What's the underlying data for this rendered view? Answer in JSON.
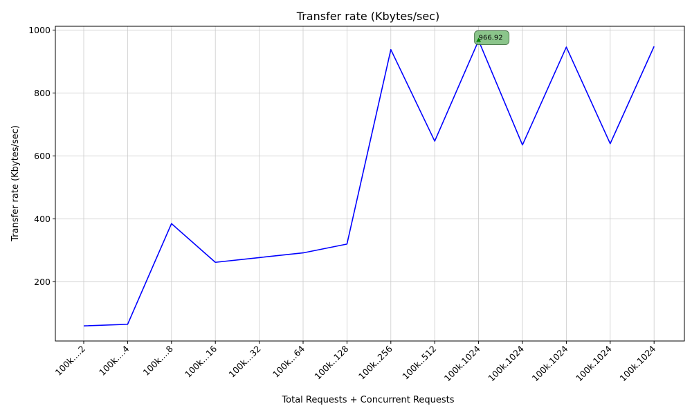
{
  "chart_data": {
    "type": "line",
    "title": "Transfer rate (Kbytes/sec)",
    "xlabel": "Total Requests + Concurrent Requests",
    "ylabel": "Transfer rate (Kbytes/sec)",
    "categories": [
      "100k....2",
      "100k....4",
      "100k....8",
      "100k...16",
      "100k...32",
      "100k...64",
      "100k..128",
      "100k..256",
      "100k..512",
      "100k.1024",
      "100k.1024",
      "100k.1024",
      "100k.1024",
      "100k.1024"
    ],
    "series": [
      {
        "values": [
          60,
          65,
          385,
          262,
          277,
          292,
          320,
          938,
          647,
          966.92,
          635,
          946,
          639,
          948
        ],
        "color": "#0000ff"
      }
    ],
    "ylim": [
      12,
      1012
    ],
    "yticks": [
      200,
      400,
      600,
      800,
      1000
    ],
    "grid": true,
    "max_annotation": {
      "index": 9,
      "label": "966.92",
      "marker_color": "#008000",
      "box_color": "#7fbf7f"
    }
  }
}
